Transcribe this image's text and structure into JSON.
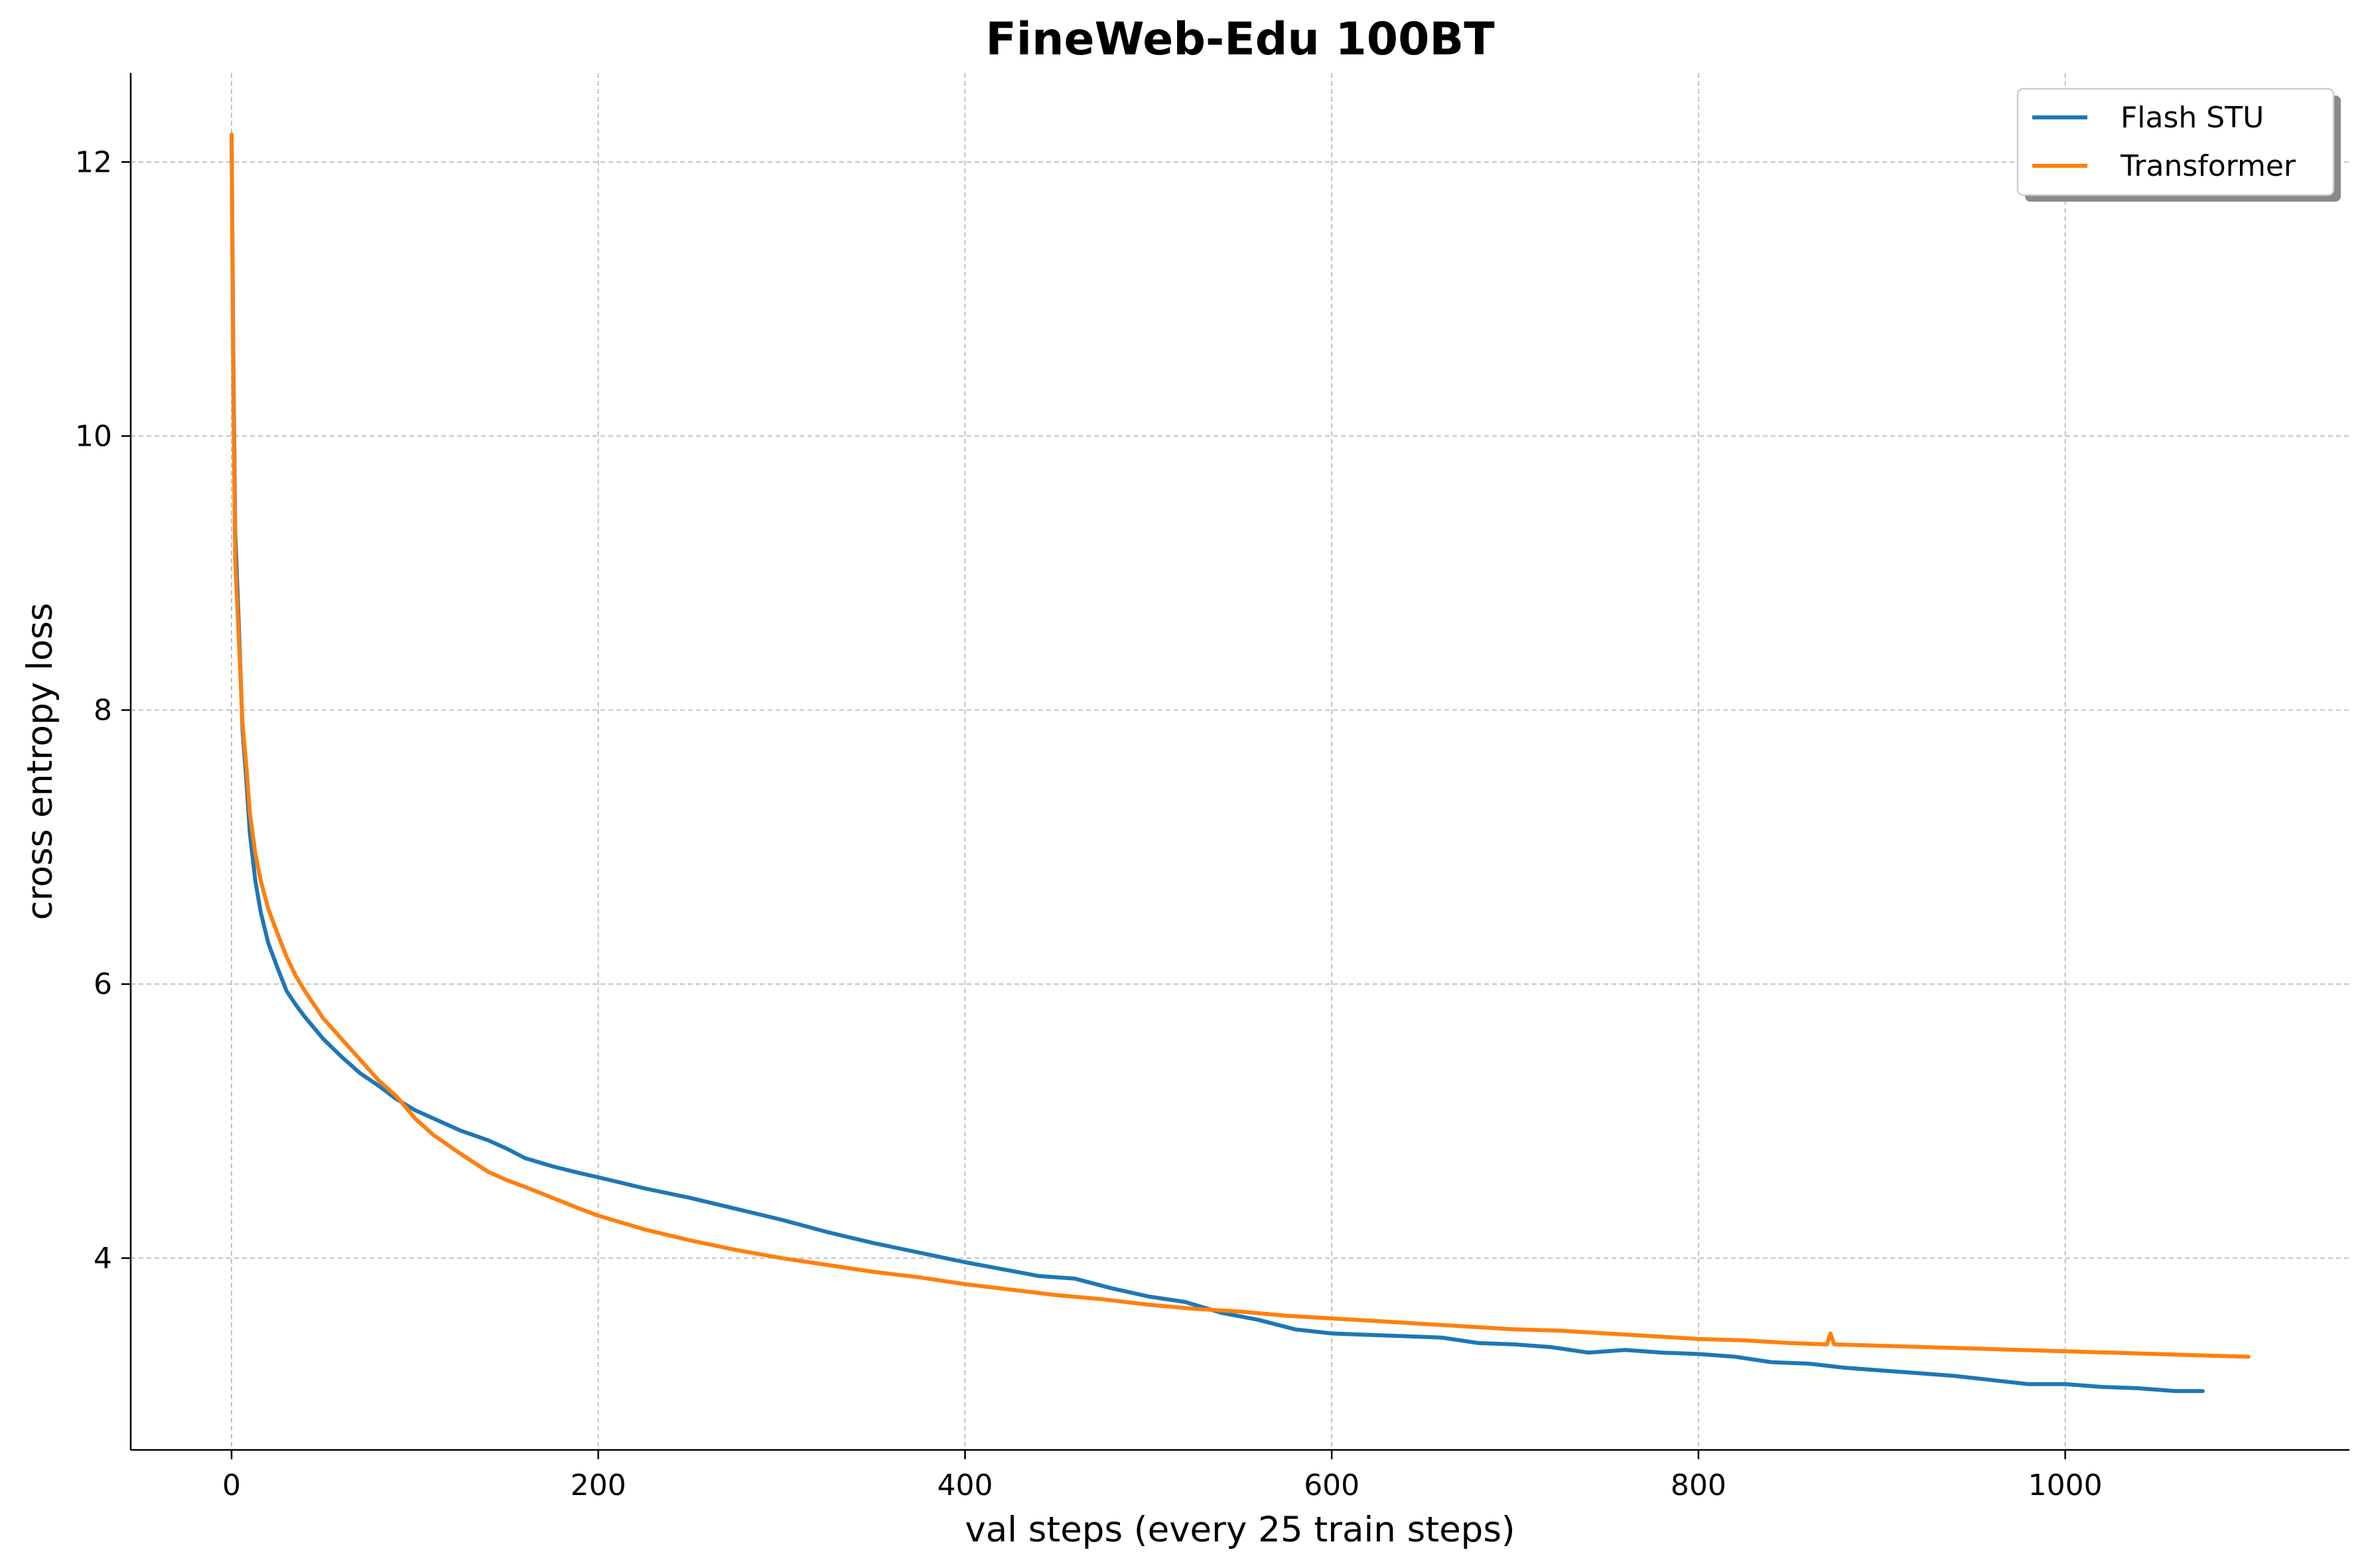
{
  "chart_data": {
    "type": "line",
    "title": "FineWeb-Edu 100BT",
    "xlabel": "val steps (every 25 train steps)",
    "ylabel": "cross entropy loss",
    "xlim": [
      -55,
      1155
    ],
    "ylim": [
      2.6,
      12.65
    ],
    "xticks": [
      0,
      200,
      400,
      600,
      800,
      1000
    ],
    "yticks": [
      4,
      6,
      8,
      10,
      12
    ],
    "grid": true,
    "legend_position": "top-right",
    "series": [
      {
        "name": "Flash STU",
        "color": "#1f77b4",
        "points": [
          [
            0,
            12.2
          ],
          [
            1,
            10.5
          ],
          [
            2,
            9.3
          ],
          [
            4,
            8.6
          ],
          [
            6,
            7.85
          ],
          [
            8,
            7.5
          ],
          [
            10,
            7.1
          ],
          [
            13,
            6.75
          ],
          [
            16,
            6.52
          ],
          [
            20,
            6.3
          ],
          [
            25,
            6.12
          ],
          [
            30,
            5.95
          ],
          [
            35,
            5.85
          ],
          [
            40,
            5.76
          ],
          [
            50,
            5.6
          ],
          [
            60,
            5.47
          ],
          [
            70,
            5.35
          ],
          [
            80,
            5.26
          ],
          [
            90,
            5.16
          ],
          [
            100,
            5.08
          ],
          [
            110,
            5.02
          ],
          [
            125,
            4.93
          ],
          [
            140,
            4.86
          ],
          [
            150,
            4.8
          ],
          [
            160,
            4.73
          ],
          [
            175,
            4.67
          ],
          [
            190,
            4.62
          ],
          [
            200,
            4.59
          ],
          [
            225,
            4.51
          ],
          [
            250,
            4.44
          ],
          [
            275,
            4.36
          ],
          [
            300,
            4.28
          ],
          [
            325,
            4.19
          ],
          [
            350,
            4.11
          ],
          [
            375,
            4.04
          ],
          [
            400,
            3.97
          ],
          [
            420,
            3.92
          ],
          [
            440,
            3.87
          ],
          [
            460,
            3.85
          ],
          [
            480,
            3.78
          ],
          [
            500,
            3.72
          ],
          [
            520,
            3.68
          ],
          [
            540,
            3.6
          ],
          [
            560,
            3.55
          ],
          [
            580,
            3.48
          ],
          [
            600,
            3.45
          ],
          [
            620,
            3.44
          ],
          [
            640,
            3.43
          ],
          [
            660,
            3.42
          ],
          [
            680,
            3.38
          ],
          [
            700,
            3.37
          ],
          [
            720,
            3.35
          ],
          [
            740,
            3.31
          ],
          [
            760,
            3.33
          ],
          [
            780,
            3.31
          ],
          [
            800,
            3.3
          ],
          [
            820,
            3.28
          ],
          [
            840,
            3.24
          ],
          [
            860,
            3.23
          ],
          [
            880,
            3.2
          ],
          [
            900,
            3.18
          ],
          [
            920,
            3.16
          ],
          [
            940,
            3.14
          ],
          [
            960,
            3.11
          ],
          [
            980,
            3.08
          ],
          [
            1000,
            3.08
          ],
          [
            1020,
            3.06
          ],
          [
            1040,
            3.05
          ],
          [
            1060,
            3.03
          ],
          [
            1075,
            3.03
          ]
        ]
      },
      {
        "name": "Transformer",
        "color": "#ff7f0e",
        "points": [
          [
            0,
            12.2
          ],
          [
            1,
            10.3
          ],
          [
            2,
            9.1
          ],
          [
            4,
            8.5
          ],
          [
            6,
            7.9
          ],
          [
            8,
            7.6
          ],
          [
            10,
            7.25
          ],
          [
            13,
            6.95
          ],
          [
            16,
            6.75
          ],
          [
            20,
            6.55
          ],
          [
            25,
            6.37
          ],
          [
            30,
            6.2
          ],
          [
            35,
            6.06
          ],
          [
            40,
            5.95
          ],
          [
            50,
            5.75
          ],
          [
            60,
            5.6
          ],
          [
            70,
            5.45
          ],
          [
            80,
            5.3
          ],
          [
            90,
            5.18
          ],
          [
            100,
            5.02
          ],
          [
            110,
            4.9
          ],
          [
            125,
            4.76
          ],
          [
            140,
            4.63
          ],
          [
            150,
            4.57
          ],
          [
            160,
            4.52
          ],
          [
            175,
            4.44
          ],
          [
            190,
            4.36
          ],
          [
            200,
            4.31
          ],
          [
            225,
            4.21
          ],
          [
            250,
            4.13
          ],
          [
            275,
            4.06
          ],
          [
            300,
            4.0
          ],
          [
            325,
            3.95
          ],
          [
            350,
            3.9
          ],
          [
            375,
            3.86
          ],
          [
            400,
            3.81
          ],
          [
            425,
            3.77
          ],
          [
            450,
            3.73
          ],
          [
            475,
            3.7
          ],
          [
            500,
            3.66
          ],
          [
            525,
            3.63
          ],
          [
            550,
            3.61
          ],
          [
            575,
            3.58
          ],
          [
            600,
            3.56
          ],
          [
            625,
            3.54
          ],
          [
            650,
            3.52
          ],
          [
            675,
            3.5
          ],
          [
            700,
            3.48
          ],
          [
            725,
            3.47
          ],
          [
            750,
            3.45
          ],
          [
            775,
            3.43
          ],
          [
            800,
            3.41
          ],
          [
            825,
            3.4
          ],
          [
            850,
            3.38
          ],
          [
            870,
            3.37
          ],
          [
            872,
            3.45
          ],
          [
            874,
            3.37
          ],
          [
            900,
            3.36
          ],
          [
            925,
            3.35
          ],
          [
            950,
            3.34
          ],
          [
            975,
            3.33
          ],
          [
            1000,
            3.32
          ],
          [
            1025,
            3.31
          ],
          [
            1050,
            3.3
          ],
          [
            1075,
            3.29
          ],
          [
            1100,
            3.28
          ]
        ]
      }
    ]
  }
}
